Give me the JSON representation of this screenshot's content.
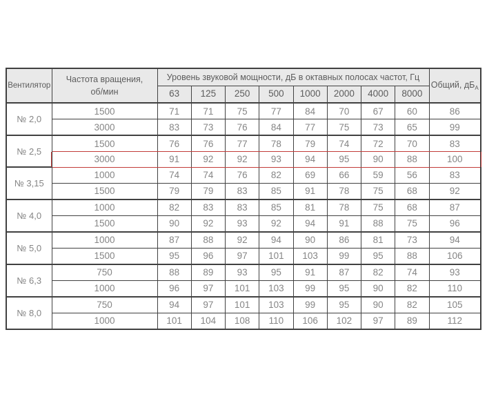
{
  "table": {
    "header": {
      "fan": "Вентилятор",
      "speed": "Частота вращения,\nоб/мин",
      "levels": "Уровень звуковой мощности, дБ в октавных полосах частот, Гц",
      "total_main": "Общий, дБ",
      "total_sub": "А",
      "frequencies": [
        "63",
        "125",
        "250",
        "500",
        "1000",
        "2000",
        "4000",
        "8000"
      ]
    },
    "groups": [
      {
        "fan": "№ 2,0",
        "rows": [
          {
            "speed": "1500",
            "levels": [
              71,
              71,
              75,
              77,
              84,
              70,
              67,
              60
            ],
            "total": 86
          },
          {
            "speed": "3000",
            "levels": [
              83,
              73,
              76,
              84,
              77,
              75,
              73,
              65
            ],
            "total": 99
          }
        ]
      },
      {
        "fan": "№ 2,5",
        "rows": [
          {
            "speed": "1500",
            "levels": [
              76,
              76,
              77,
              78,
              79,
              74,
              72,
              70
            ],
            "total": 83
          },
          {
            "speed": "3000",
            "levels": [
              91,
              92,
              92,
              93,
              94,
              95,
              90,
              88
            ],
            "total": 100
          }
        ]
      },
      {
        "fan": "№ 3,15",
        "rows": [
          {
            "speed": "1000",
            "levels": [
              74,
              74,
              76,
              82,
              69,
              66,
              59,
              56
            ],
            "total": 83
          },
          {
            "speed": "1500",
            "levels": [
              79,
              79,
              83,
              85,
              91,
              78,
              75,
              68
            ],
            "total": 92
          }
        ]
      },
      {
        "fan": "№ 4,0",
        "rows": [
          {
            "speed": "1000",
            "levels": [
              82,
              83,
              83,
              85,
              81,
              78,
              75,
              68
            ],
            "total": 87
          },
          {
            "speed": "1500",
            "levels": [
              90,
              92,
              93,
              92,
              94,
              91,
              88,
              75
            ],
            "total": 96
          }
        ]
      },
      {
        "fan": "№ 5,0",
        "rows": [
          {
            "speed": "1000",
            "levels": [
              87,
              88,
              92,
              94,
              90,
              86,
              81,
              73
            ],
            "total": 94
          },
          {
            "speed": "1500",
            "levels": [
              95,
              96,
              97,
              101,
              103,
              99,
              95,
              88
            ],
            "total": 106
          }
        ]
      },
      {
        "fan": "№ 6,3",
        "rows": [
          {
            "speed": "750",
            "levels": [
              88,
              89,
              93,
              95,
              91,
              87,
              82,
              74
            ],
            "total": 93
          },
          {
            "speed": "1000",
            "levels": [
              96,
              97,
              101,
              103,
              99,
              95,
              90,
              82
            ],
            "total": 110
          }
        ]
      },
      {
        "fan": "№ 8,0",
        "rows": [
          {
            "speed": "750",
            "levels": [
              94,
              97,
              101,
              103,
              99,
              95,
              90,
              82
            ],
            "total": 105
          },
          {
            "speed": "1000",
            "levels": [
              101,
              104,
              108,
              110,
              106,
              102,
              97,
              89
            ],
            "total": 112
          }
        ]
      }
    ],
    "highlight": {
      "group_index": 1,
      "row_index": 1,
      "color": "#c23b38"
    }
  }
}
